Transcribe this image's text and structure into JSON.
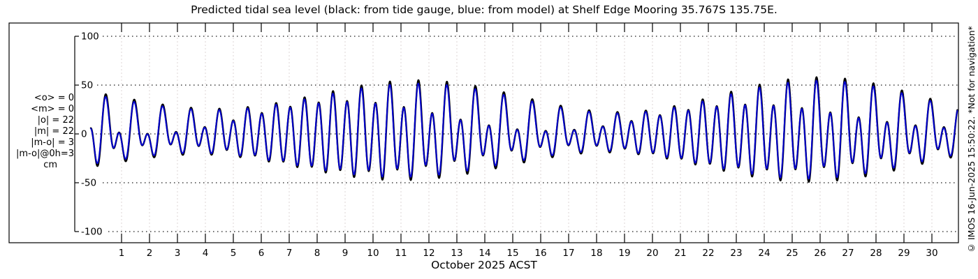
{
  "title": "Predicted tidal sea level (black: from tide gauge, blue: from model) at Shelf Edge Mooring 35.767S 135.75E.",
  "watermark": "© IMOS 16-Jun-2025 15:50:22.  *Not for navigation*",
  "stats_box": {
    "lines": [
      "<o> = 0",
      "<m> = 0",
      "|o| = 22",
      "|m| = 22",
      "|m-o| = 3",
      "|m-o|@0h=3"
    ],
    "unit": "cm"
  },
  "colors": {
    "observed": "#000000",
    "model": "#0000cc",
    "frame": "#000000",
    "grid_horizontal": "#1a1a1a",
    "grid_vertical": "#ddd4d4",
    "background": "#ffffff"
  },
  "chart_data": {
    "type": "line",
    "title": "Predicted tidal sea level (black: from tide gauge, blue: from model) at Shelf Edge Mooring 35.767S 135.75E.",
    "xlabel": "October 2025 ACST",
    "ylabel": "",
    "y_unit": "cm",
    "ylim": [
      -100,
      100
    ],
    "y_ticks": [
      100,
      50,
      0,
      -50,
      -100
    ],
    "x_ticks": [
      1,
      2,
      3,
      4,
      5,
      6,
      7,
      8,
      9,
      10,
      11,
      12,
      13,
      14,
      15,
      16,
      17,
      18,
      19,
      20,
      21,
      22,
      23,
      24,
      25,
      26,
      27,
      28,
      29,
      30
    ],
    "x_range_days": [
      -0.1,
      30.92
    ],
    "grid": {
      "horizontal_style": "black dotted at each y tick",
      "vertical_style": "light dashed at each day"
    },
    "legend": [
      {
        "label": "tide gauge",
        "color": "#000000"
      },
      {
        "label": "model",
        "color": "#0000cc"
      }
    ],
    "approx_extremes_cm": {
      "spring_high": 55,
      "spring_low": -50,
      "neap_high": 22,
      "neap_low": -25,
      "spring_days": [
        10,
        24.8
      ],
      "neap_days": [
        2.5,
        17
      ]
    },
    "sample_step_days": 0.01,
    "series": [
      {
        "name": "sea level from tide gauge (observed)",
        "color": "#000000",
        "line_width": 2.4,
        "semidiurnal": {
          "base_amp_cm": 28.5,
          "mod_amp_cm": 13.5,
          "mod_peak_day": 10.25,
          "mod_period_days": 14.765,
          "period_days": 0.5088,
          "phase_peak_day": 0.425
        },
        "diurnal": {
          "base_amp_cm": 12.0,
          "mod_amp_cm": 8.5,
          "mod_peak_day": 13.8,
          "mod_period_days": 13.661,
          "period_days": 1.0176,
          "phase_peak_day": 0.49
        }
      },
      {
        "name": "sea level from model (predicted)",
        "color": "#0000cc",
        "line_width": 2.0,
        "semidiurnal": {
          "base_amp_cm": 27.0,
          "mod_amp_cm": 13.0,
          "mod_peak_day": 10.2,
          "mod_period_days": 14.765,
          "period_days": 0.5088,
          "phase_peak_day": 0.42
        },
        "diurnal": {
          "base_amp_cm": 11.0,
          "mod_amp_cm": 8.0,
          "mod_peak_day": 13.9,
          "mod_period_days": 13.661,
          "period_days": 1.0176,
          "phase_peak_day": 0.48
        }
      }
    ]
  }
}
